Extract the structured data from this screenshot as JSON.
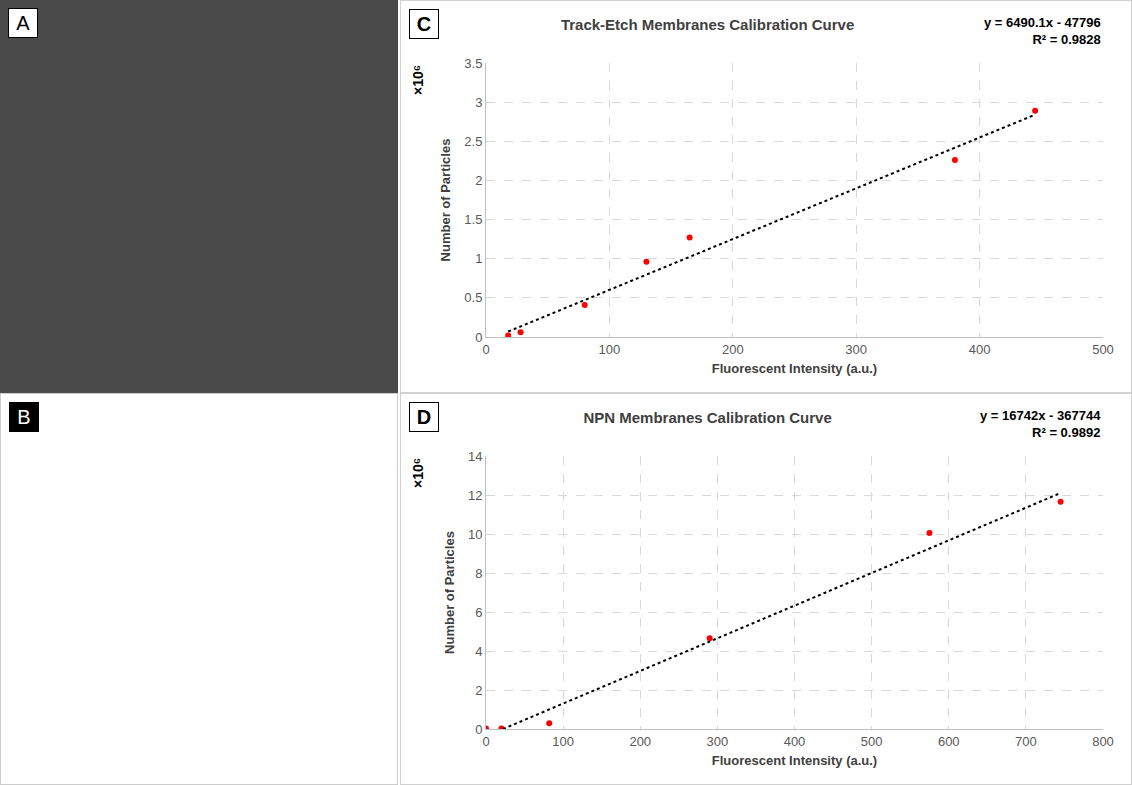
{
  "images": [
    {
      "panel_label": "A"
    },
    {
      "panel_label": "B"
    }
  ],
  "chart_data": [
    {
      "panel_label": "C",
      "type": "scatter",
      "title": "Track-Etch Membranes Calibration Curve",
      "x_label": "Fluorescent Intensity (a.u.)",
      "y_label": "Number of Particles",
      "annotations": [
        "×10⁶",
        "y = 6490.1x - 47796",
        "R² = 0.9828"
      ],
      "series": [
        {
          "type": "scatter",
          "marker": "circle",
          "color": "#ff0000",
          "x": [
            18,
            28,
            80,
            130,
            165,
            380,
            445
          ],
          "values": [
            0.02,
            0.06,
            0.41,
            0.96,
            1.27,
            2.26,
            2.89
          ]
        },
        {
          "type": "line",
          "line_style": "dotted",
          "color": "#000000",
          "x": [
            18,
            445
          ],
          "values": [
            0.07,
            2.84
          ]
        }
      ],
      "xlim": [
        0,
        500
      ],
      "xticks": [
        0,
        100,
        200,
        300,
        400,
        500
      ],
      "ylim": [
        0,
        3.5
      ],
      "yticks": [
        0,
        0.5,
        1,
        1.5,
        2,
        2.5,
        3,
        3.5
      ],
      "grid": true
    },
    {
      "panel_label": "D",
      "type": "scatter",
      "title": "NPN Membranes Calibration Curve",
      "x_label": "Fluorescent Intensity (a.u.)",
      "y_label": "Number of Particles",
      "annotations": [
        "×10⁶",
        "y = 16742x - 367744",
        "R² = 0.9892"
      ],
      "series": [
        {
          "type": "scatter",
          "marker": "circle",
          "color": "#ff0000",
          "x": [
            0,
            20,
            82,
            290,
            575,
            745
          ],
          "values": [
            0.02,
            0.02,
            0.3,
            4.65,
            10.05,
            11.65
          ]
        },
        {
          "type": "line",
          "line_style": "dotted",
          "color": "#000000",
          "x": [
            22,
            745
          ],
          "values": [
            0.0,
            12.1
          ]
        }
      ],
      "xlim": [
        0,
        800
      ],
      "xticks": [
        0,
        100,
        200,
        300,
        400,
        500,
        600,
        700,
        800
      ],
      "ylim": [
        0,
        14
      ],
      "yticks": [
        0,
        2,
        4,
        6,
        8,
        10,
        12,
        14
      ],
      "grid": true
    }
  ]
}
